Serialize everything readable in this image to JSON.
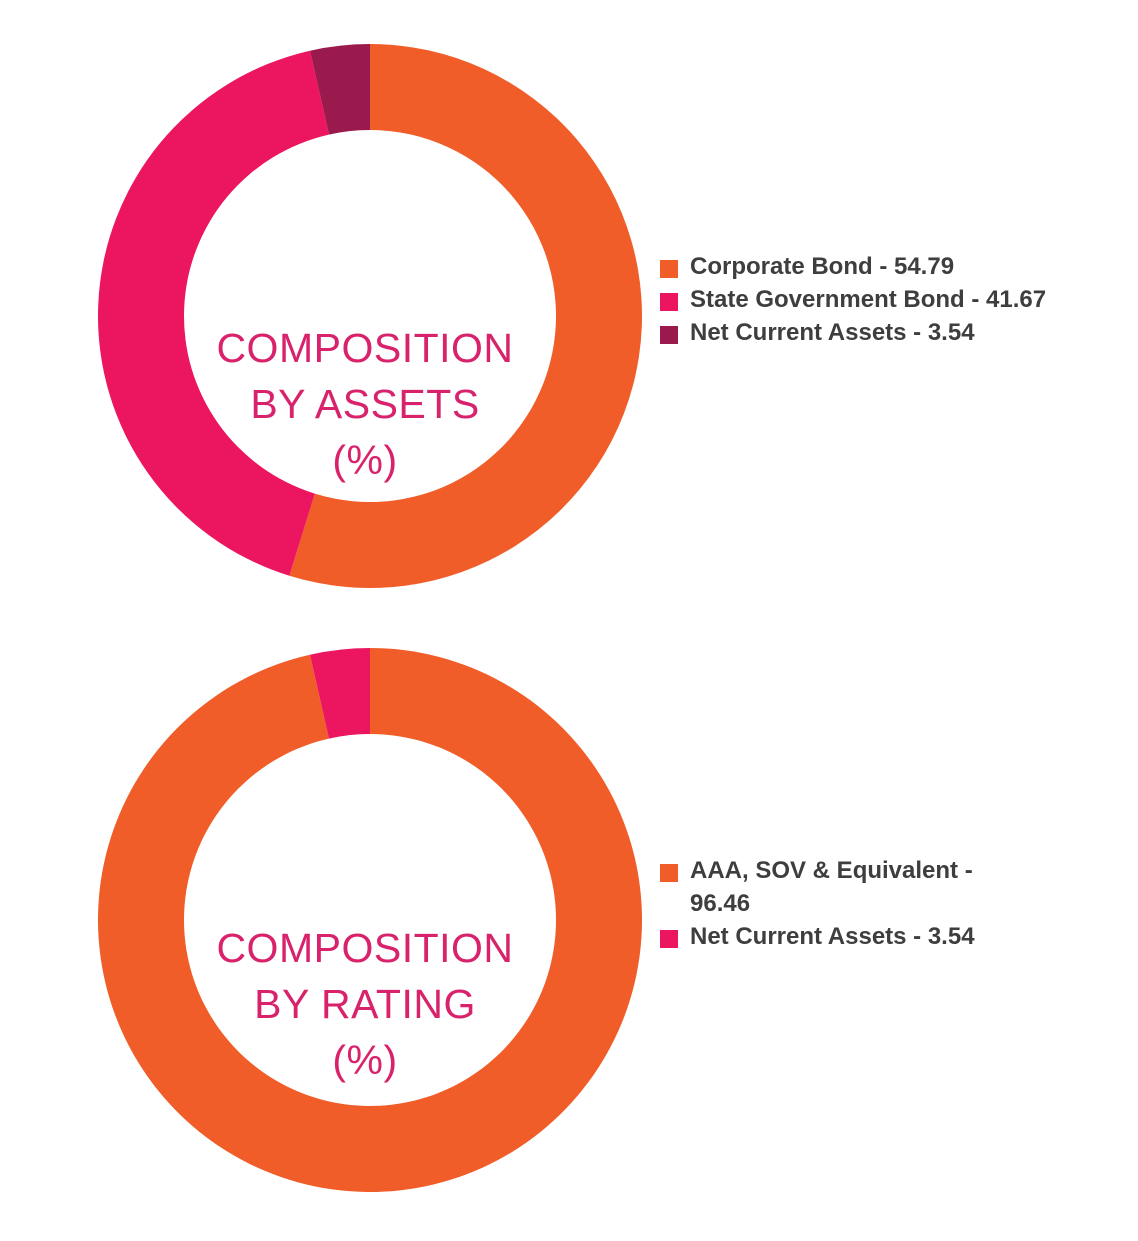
{
  "chart_data": [
    {
      "type": "pie",
      "title_lines": [
        "COMPOSITION",
        "BY ASSETS",
        "(%)"
      ],
      "categories": [
        "Corporate Bond",
        "State Government Bond",
        "Net Current Assets"
      ],
      "values": [
        54.79,
        41.67,
        3.54
      ],
      "colors": [
        "#f05d28",
        "#ec1660",
        "#9b1a4d"
      ],
      "legend_labels": [
        "Corporate Bond - 54.79",
        "State Government Bond - 41.67",
        "Net Current Assets - 3.54"
      ],
      "legend_position": "right"
    },
    {
      "type": "pie",
      "title_lines": [
        "COMPOSITION",
        "BY RATING",
        "(%)"
      ],
      "categories": [
        "AAA, SOV & Equivalent",
        "Net Current Assets"
      ],
      "values": [
        96.46,
        3.54
      ],
      "colors": [
        "#f05d28",
        "#ec1660"
      ],
      "legend_labels": [
        "AAA, SOV & Equivalent - 96.46",
        "Net Current Assets - 3.54"
      ],
      "legend_position": "right"
    }
  ]
}
